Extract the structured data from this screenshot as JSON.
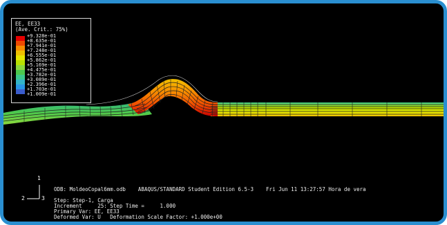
{
  "legend": {
    "title_line1": "EE, EE33",
    "title_line2": "(Ave. Crit.: 75%)",
    "ticks": [
      "+9.328e-01",
      "+8.635e-01",
      "+7.941e-01",
      "+7.248e-01",
      "+6.555e-01",
      "+5.862e-01",
      "+5.169e-01",
      "+4.475e-01",
      "+3.782e-01",
      "+3.089e-01",
      "+2.396e-01",
      "+1.703e-01",
      "+1.009e-01"
    ],
    "colors": [
      "#e60000",
      "#f04a00",
      "#f78c00",
      "#f0c000",
      "#e6e600",
      "#b8e000",
      "#8cd83c",
      "#4cc84c",
      "#3cc88c",
      "#32b4c8",
      "#2896e6",
      "#3a5ccc",
      "#3c3ca8"
    ]
  },
  "info": {
    "odb_line": "ODB: MoldeoCopal6mm.odb    ABAQUS/STANDARD Student Edition 6.5-3    Fri Jun 11 13:27:57 Hora de vera",
    "step_line": "Step: Step-1, Carga",
    "increment_line": "Increment     25: Step Time =     1.000",
    "primary_line": "Primary Var: EE, EE33",
    "deformed_line": "Deformed Var: U   Deformation Scale Factor: +1.000e+00"
  },
  "triad": {
    "axis_1": "1",
    "axis_2": "2",
    "axis_3": "3"
  }
}
